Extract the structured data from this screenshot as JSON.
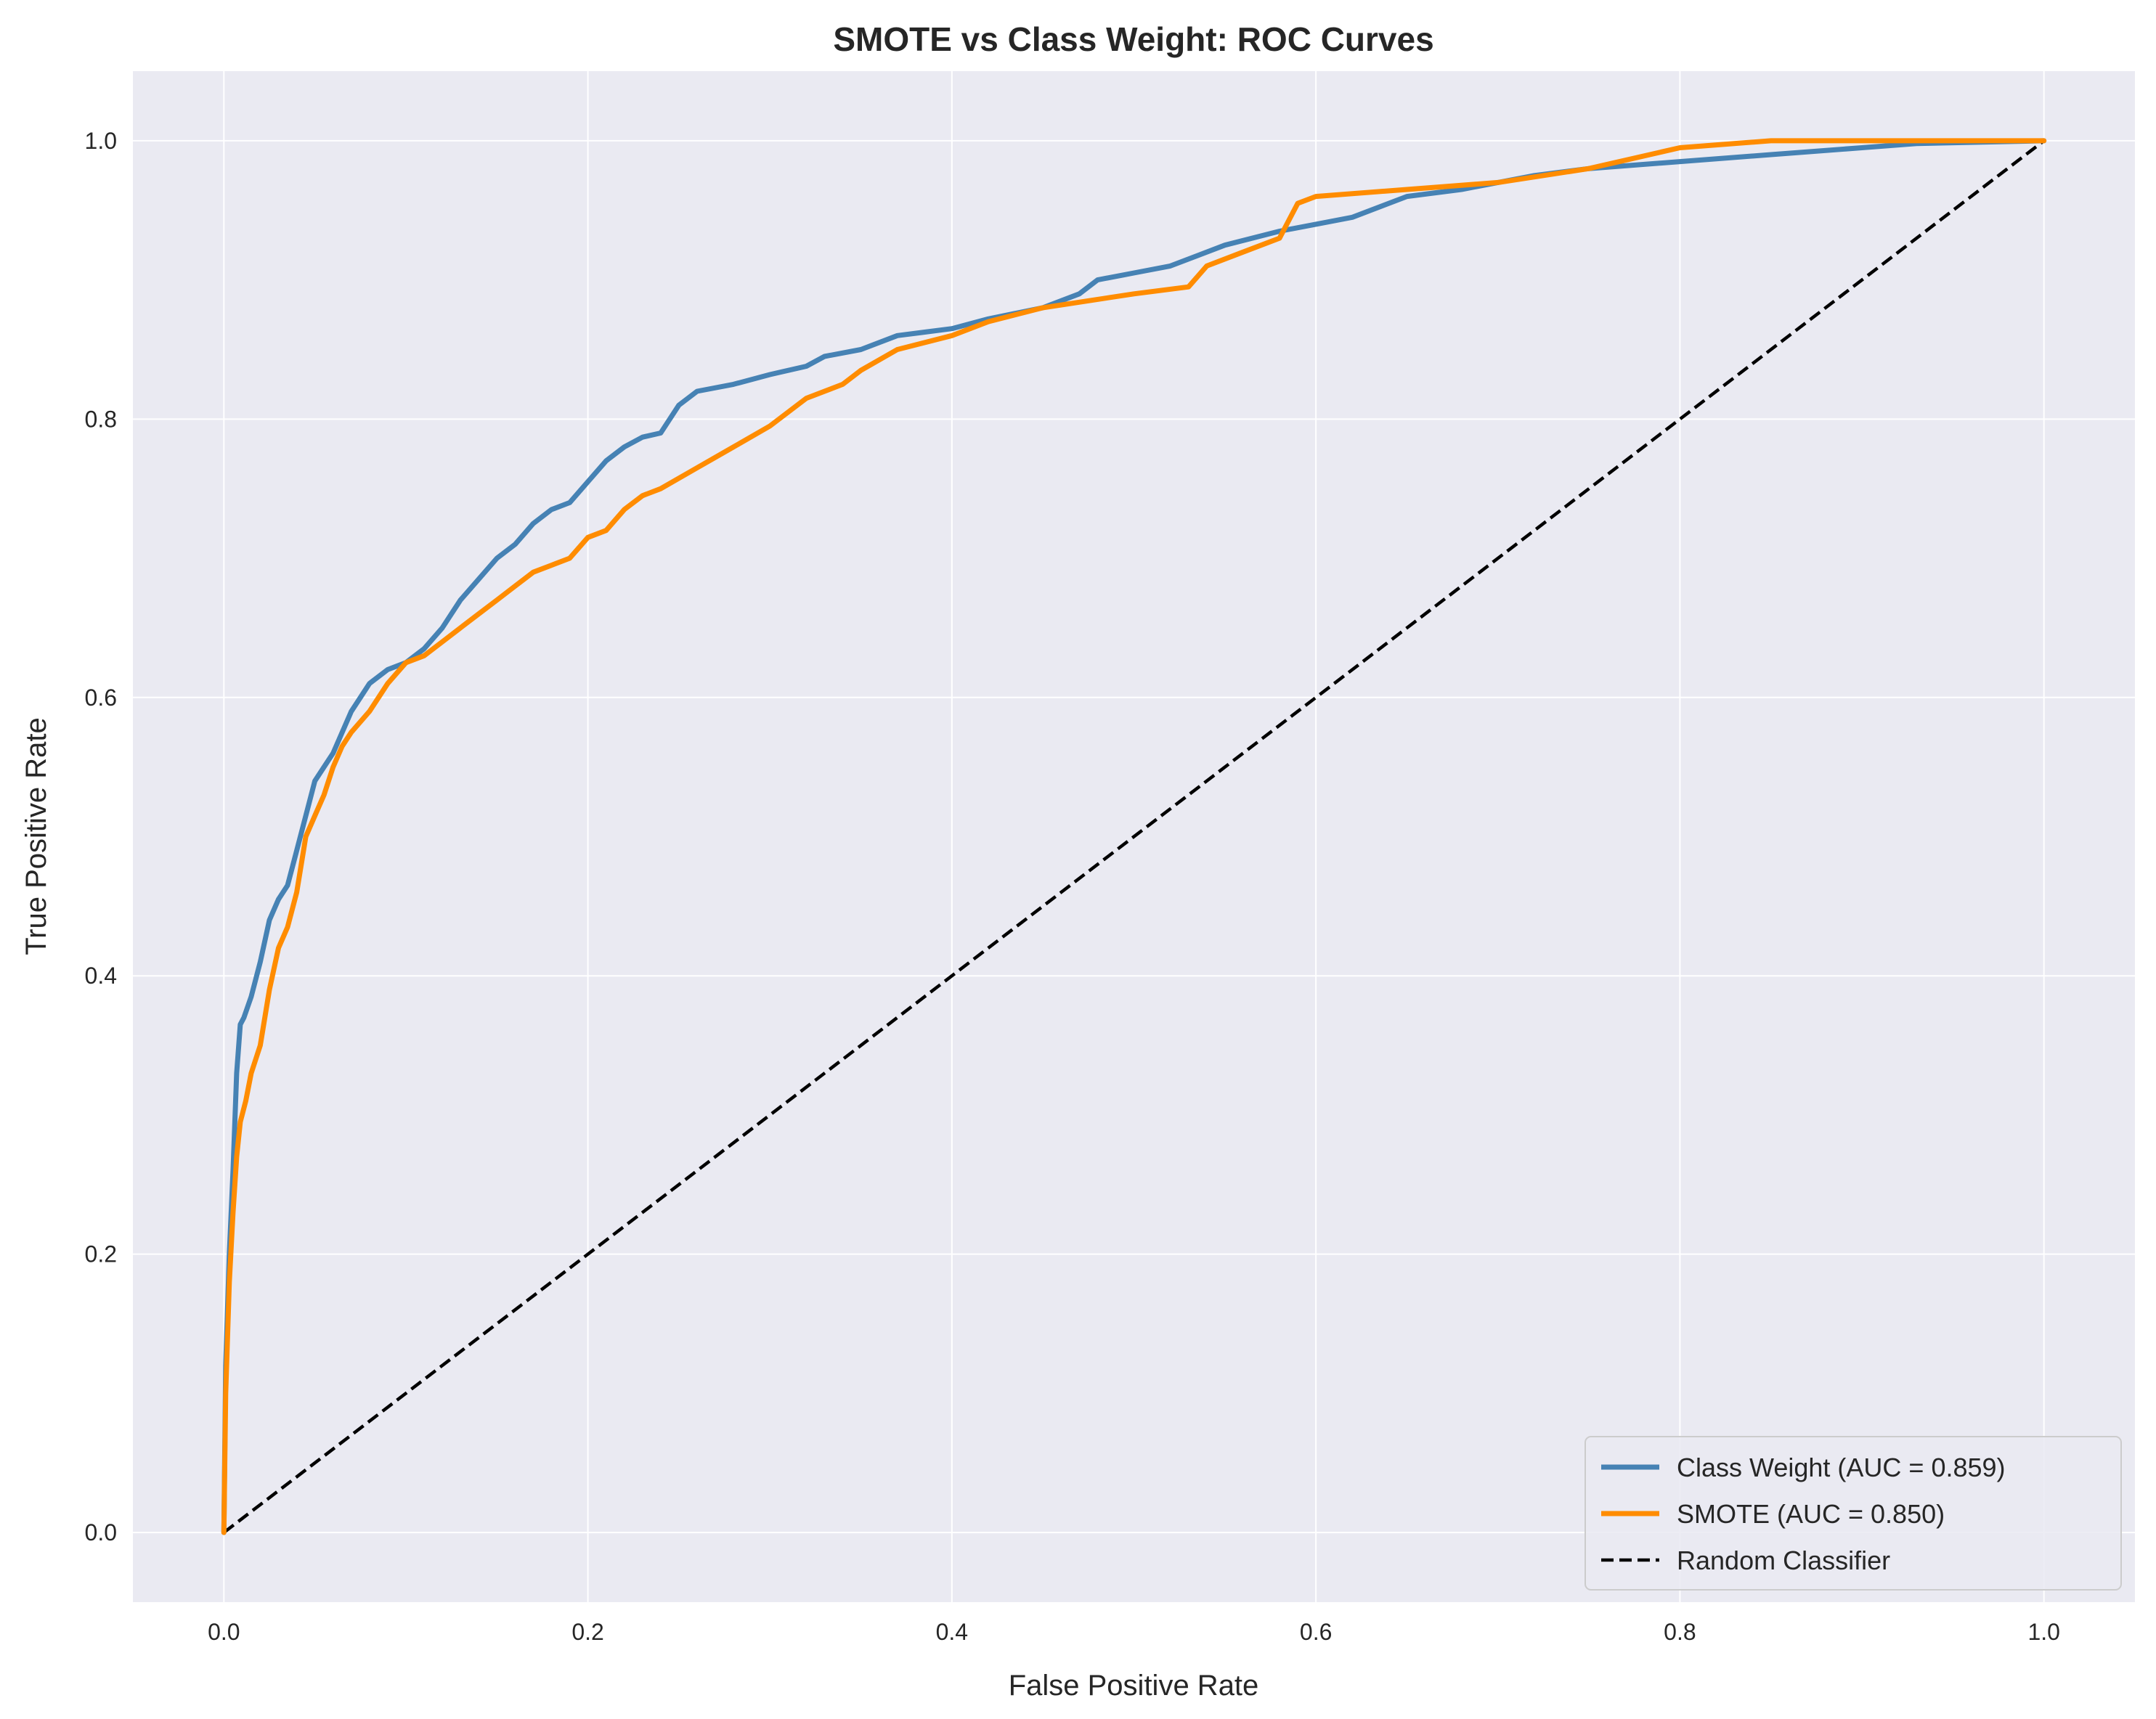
{
  "chart_data": {
    "type": "line",
    "title": "SMOTE vs Class Weight: ROC Curves",
    "xlabel": "False Positive Rate",
    "ylabel": "True Positive Rate",
    "xlim": [
      -0.05,
      1.05
    ],
    "ylim": [
      -0.05,
      1.05
    ],
    "xticks": [
      "0.0",
      "0.2",
      "0.4",
      "0.6",
      "0.8",
      "1.0"
    ],
    "yticks": [
      "0.0",
      "0.2",
      "0.4",
      "0.6",
      "0.8",
      "1.0"
    ],
    "grid": true,
    "legend_position": "lower-right",
    "series": [
      {
        "name": "Class Weight (AUC = 0.859)",
        "color": "#4682b4",
        "style": "solid",
        "x": [
          0.0,
          0.001,
          0.003,
          0.005,
          0.007,
          0.009,
          0.011,
          0.015,
          0.02,
          0.025,
          0.03,
          0.035,
          0.04,
          0.045,
          0.05,
          0.055,
          0.06,
          0.07,
          0.075,
          0.08,
          0.09,
          0.1,
          0.11,
          0.12,
          0.125,
          0.13,
          0.14,
          0.15,
          0.16,
          0.17,
          0.18,
          0.19,
          0.2,
          0.21,
          0.22,
          0.23,
          0.24,
          0.25,
          0.26,
          0.28,
          0.3,
          0.32,
          0.33,
          0.35,
          0.37,
          0.4,
          0.42,
          0.45,
          0.47,
          0.48,
          0.5,
          0.52,
          0.55,
          0.58,
          0.6,
          0.62,
          0.65,
          0.68,
          0.7,
          0.72,
          0.75,
          0.8,
          0.85,
          0.9,
          0.93,
          1.0
        ],
        "y": [
          0.0,
          0.12,
          0.2,
          0.26,
          0.33,
          0.365,
          0.37,
          0.385,
          0.41,
          0.44,
          0.455,
          0.465,
          0.49,
          0.515,
          0.54,
          0.55,
          0.56,
          0.59,
          0.6,
          0.61,
          0.62,
          0.625,
          0.635,
          0.65,
          0.66,
          0.67,
          0.685,
          0.7,
          0.71,
          0.725,
          0.735,
          0.74,
          0.755,
          0.77,
          0.78,
          0.787,
          0.79,
          0.81,
          0.82,
          0.825,
          0.832,
          0.838,
          0.845,
          0.85,
          0.86,
          0.865,
          0.872,
          0.88,
          0.89,
          0.9,
          0.905,
          0.91,
          0.925,
          0.935,
          0.94,
          0.945,
          0.96,
          0.965,
          0.97,
          0.975,
          0.98,
          0.985,
          0.99,
          0.995,
          0.998,
          1.0
        ]
      },
      {
        "name": "SMOTE (AUC = 0.850)",
        "color": "#ff8c00",
        "style": "solid",
        "x": [
          0.0,
          0.001,
          0.003,
          0.005,
          0.007,
          0.009,
          0.012,
          0.015,
          0.02,
          0.025,
          0.03,
          0.035,
          0.04,
          0.045,
          0.05,
          0.055,
          0.06,
          0.065,
          0.07,
          0.08,
          0.09,
          0.1,
          0.11,
          0.12,
          0.13,
          0.14,
          0.15,
          0.16,
          0.17,
          0.18,
          0.19,
          0.2,
          0.21,
          0.22,
          0.23,
          0.24,
          0.26,
          0.28,
          0.3,
          0.32,
          0.34,
          0.35,
          0.37,
          0.4,
          0.42,
          0.45,
          0.5,
          0.53,
          0.54,
          0.56,
          0.58,
          0.59,
          0.6,
          0.65,
          0.7,
          0.75,
          0.8,
          0.85,
          0.9,
          1.0
        ],
        "y": [
          0.0,
          0.1,
          0.18,
          0.23,
          0.27,
          0.295,
          0.31,
          0.33,
          0.35,
          0.39,
          0.42,
          0.435,
          0.46,
          0.5,
          0.515,
          0.53,
          0.55,
          0.565,
          0.575,
          0.59,
          0.61,
          0.625,
          0.63,
          0.64,
          0.65,
          0.66,
          0.67,
          0.68,
          0.69,
          0.695,
          0.7,
          0.715,
          0.72,
          0.735,
          0.745,
          0.75,
          0.765,
          0.78,
          0.795,
          0.815,
          0.825,
          0.835,
          0.85,
          0.86,
          0.87,
          0.88,
          0.89,
          0.895,
          0.91,
          0.92,
          0.93,
          0.955,
          0.96,
          0.965,
          0.97,
          0.98,
          0.995,
          1.0,
          1.0,
          1.0
        ]
      },
      {
        "name": "Random Classifier",
        "color": "#000000",
        "style": "dashed",
        "x": [
          0.0,
          1.0
        ],
        "y": [
          0.0,
          1.0
        ]
      }
    ]
  }
}
